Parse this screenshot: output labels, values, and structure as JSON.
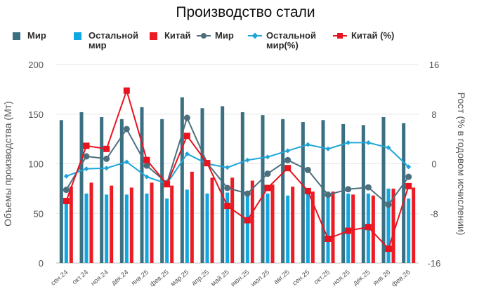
{
  "chart_data": {
    "type": "bar+line",
    "title": "Производство стали",
    "ylabel": "Объемы производства (Мт)",
    "y2label": "Рост (% в годовом исчислении)",
    "ylim": [
      0,
      200
    ],
    "y2lim": [
      -16,
      16
    ],
    "yticks": [
      "0",
      "50",
      "100",
      "150",
      "200"
    ],
    "y2ticks": [
      "-16",
      "-8",
      "0",
      "8",
      "16"
    ],
    "categories": [
      "сен.24",
      "окт.24",
      "ноя.24",
      "дек.24",
      "янв.25",
      "фев.25",
      "мар.25",
      "апр.25",
      "май.25",
      "июн.25",
      "июл.25",
      "авг.25",
      "сен.25",
      "окт.25",
      "ноя.25",
      "дек.25",
      "янв.26",
      "фев.26"
    ],
    "bar_series": [
      {
        "name": "Мир",
        "color": "#3b6f82",
        "values": [
          144,
          152,
          147,
          145,
          157,
          145,
          167,
          156,
          158,
          152,
          149,
          145,
          142,
          144,
          140,
          139,
          147,
          141
        ]
      },
      {
        "name": "Остальной мир",
        "color": "#11a7e0",
        "values": [
          64,
          70,
          69,
          69,
          70,
          65,
          74,
          70,
          71,
          71,
          70,
          68,
          71,
          72,
          70,
          70,
          75,
          65
        ]
      },
      {
        "name": "Китай",
        "color": "#ed1c24",
        "values": [
          77,
          81,
          78,
          76,
          81,
          78,
          92,
          86,
          86,
          83,
          79,
          77,
          72,
          72,
          69,
          68,
          75,
          76
        ]
      }
    ],
    "line_series": [
      {
        "name": "Мир",
        "color": "#4d6f7d",
        "marker": "circle",
        "values": [
          -4.2,
          1.2,
          0.8,
          5.6,
          -0.3,
          -3.1,
          7.4,
          0.1,
          -3.9,
          -4.8,
          -1.6,
          0.6,
          -1.0,
          -5.0,
          -4.1,
          -3.8,
          -6.6,
          -2.1
        ]
      },
      {
        "name": "Остальной мир(%)",
        "color": "#1ea6d8",
        "marker": "diamond",
        "values": [
          -2.0,
          -0.8,
          -0.7,
          0.3,
          -2.1,
          -3.2,
          1.6,
          0.0,
          -0.6,
          0.6,
          1.1,
          2.1,
          3.1,
          2.4,
          3.4,
          3.4,
          2.6,
          -0.5
        ]
      },
      {
        "name": "Китай (%)",
        "color": "#e8131f",
        "marker": "square",
        "values": [
          -6.0,
          2.9,
          2.4,
          11.8,
          0.6,
          -3.3,
          4.5,
          0.1,
          -6.8,
          -9.1,
          -3.9,
          -0.7,
          -4.4,
          -12.1,
          -10.8,
          -10.2,
          -13.7,
          -3.6
        ]
      }
    ],
    "legend_position": "top",
    "grid": true
  }
}
